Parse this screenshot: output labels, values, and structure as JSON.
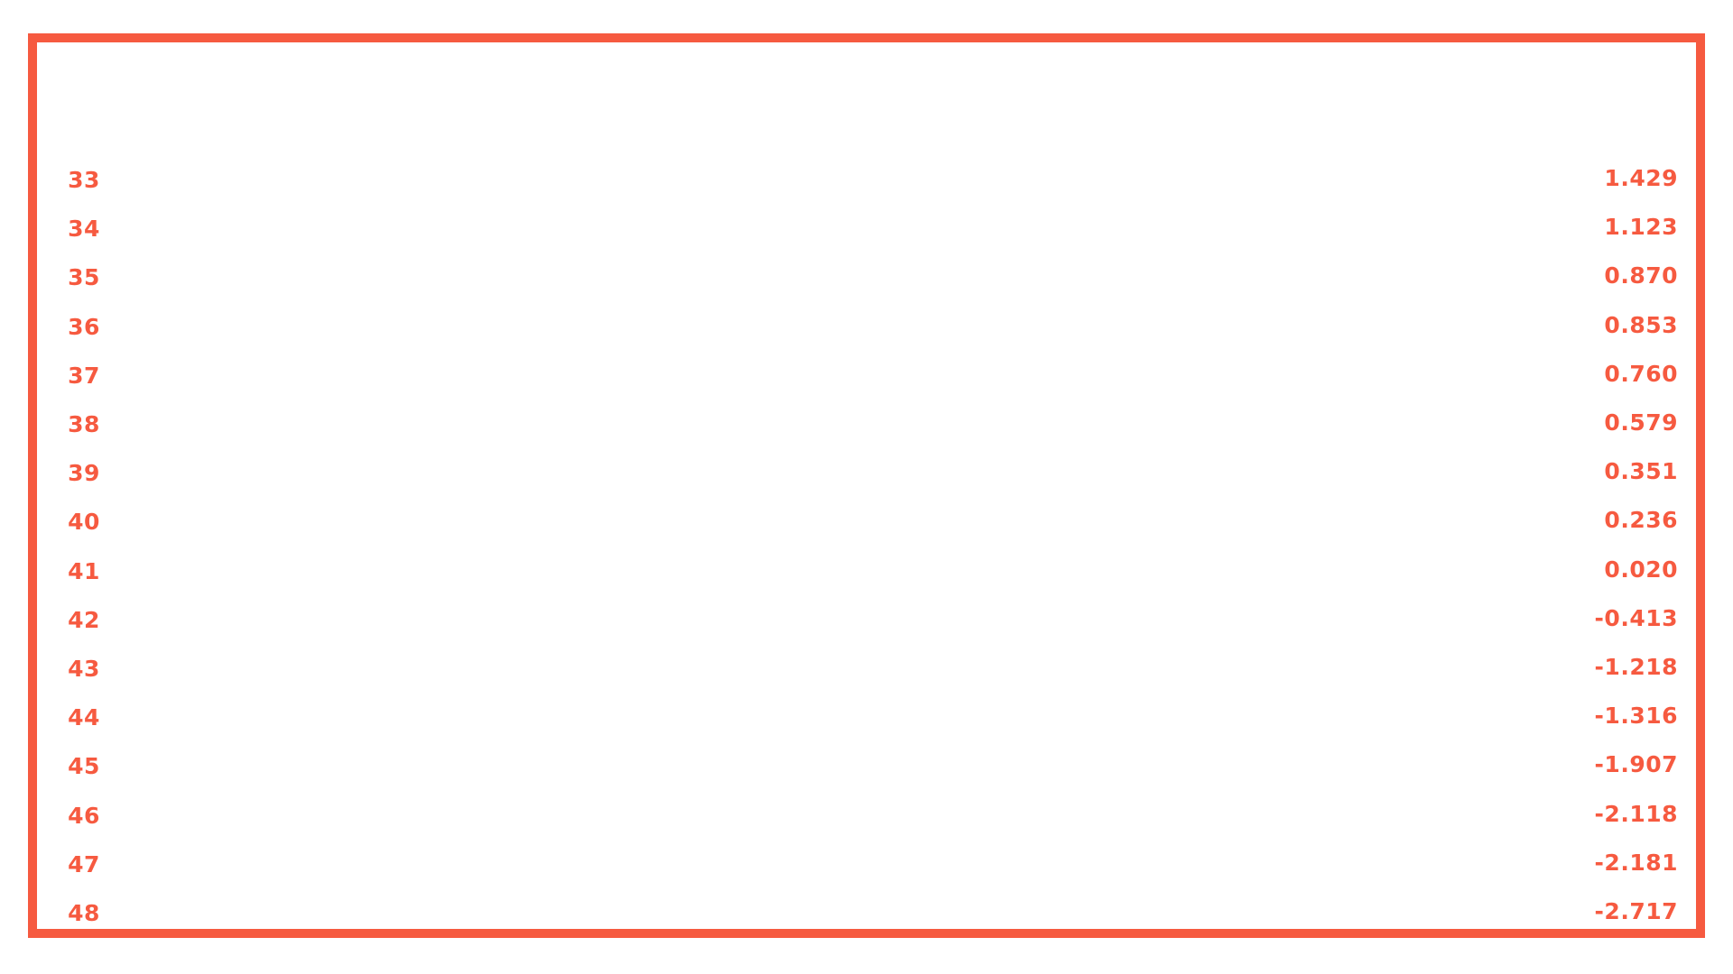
{
  "accent_color": "#f65a40",
  "rows": [
    {
      "rank": "33",
      "value": "1.429"
    },
    {
      "rank": "34",
      "value": "1.123"
    },
    {
      "rank": "35",
      "value": "0.870"
    },
    {
      "rank": "36",
      "value": "0.853"
    },
    {
      "rank": "37",
      "value": "0.760"
    },
    {
      "rank": "38",
      "value": "0.579"
    },
    {
      "rank": "39",
      "value": "0.351"
    },
    {
      "rank": "40",
      "value": "0.236"
    },
    {
      "rank": "41",
      "value": "0.020"
    },
    {
      "rank": "42",
      "value": "-0.413"
    },
    {
      "rank": "43",
      "value": "-1.218"
    },
    {
      "rank": "44",
      "value": "-1.316"
    },
    {
      "rank": "45",
      "value": "-1.907"
    },
    {
      "rank": "46",
      "value": "-2.118"
    },
    {
      "rank": "47",
      "value": "-2.181"
    },
    {
      "rank": "48",
      "value": "-2.717"
    }
  ]
}
